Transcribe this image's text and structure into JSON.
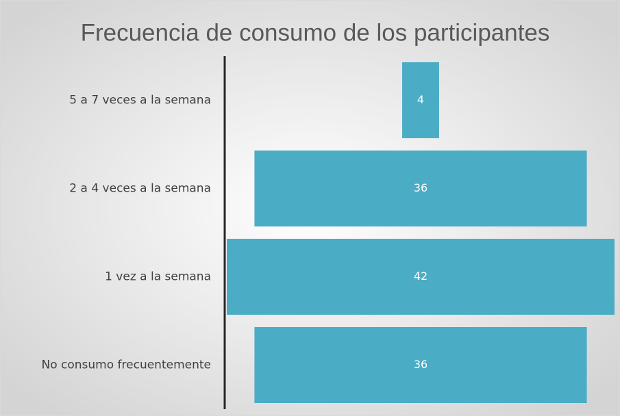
{
  "chart_data": {
    "type": "funnel",
    "title": "Frecuencia de consumo de los participantes",
    "categories": [
      "5 a 7 veces a la semana",
      "2 a 4 veces a la semana",
      "1 vez a la semana",
      "No consumo frecuentemente"
    ],
    "values": [
      4,
      36,
      42,
      36
    ],
    "color": "#4bacc6"
  }
}
